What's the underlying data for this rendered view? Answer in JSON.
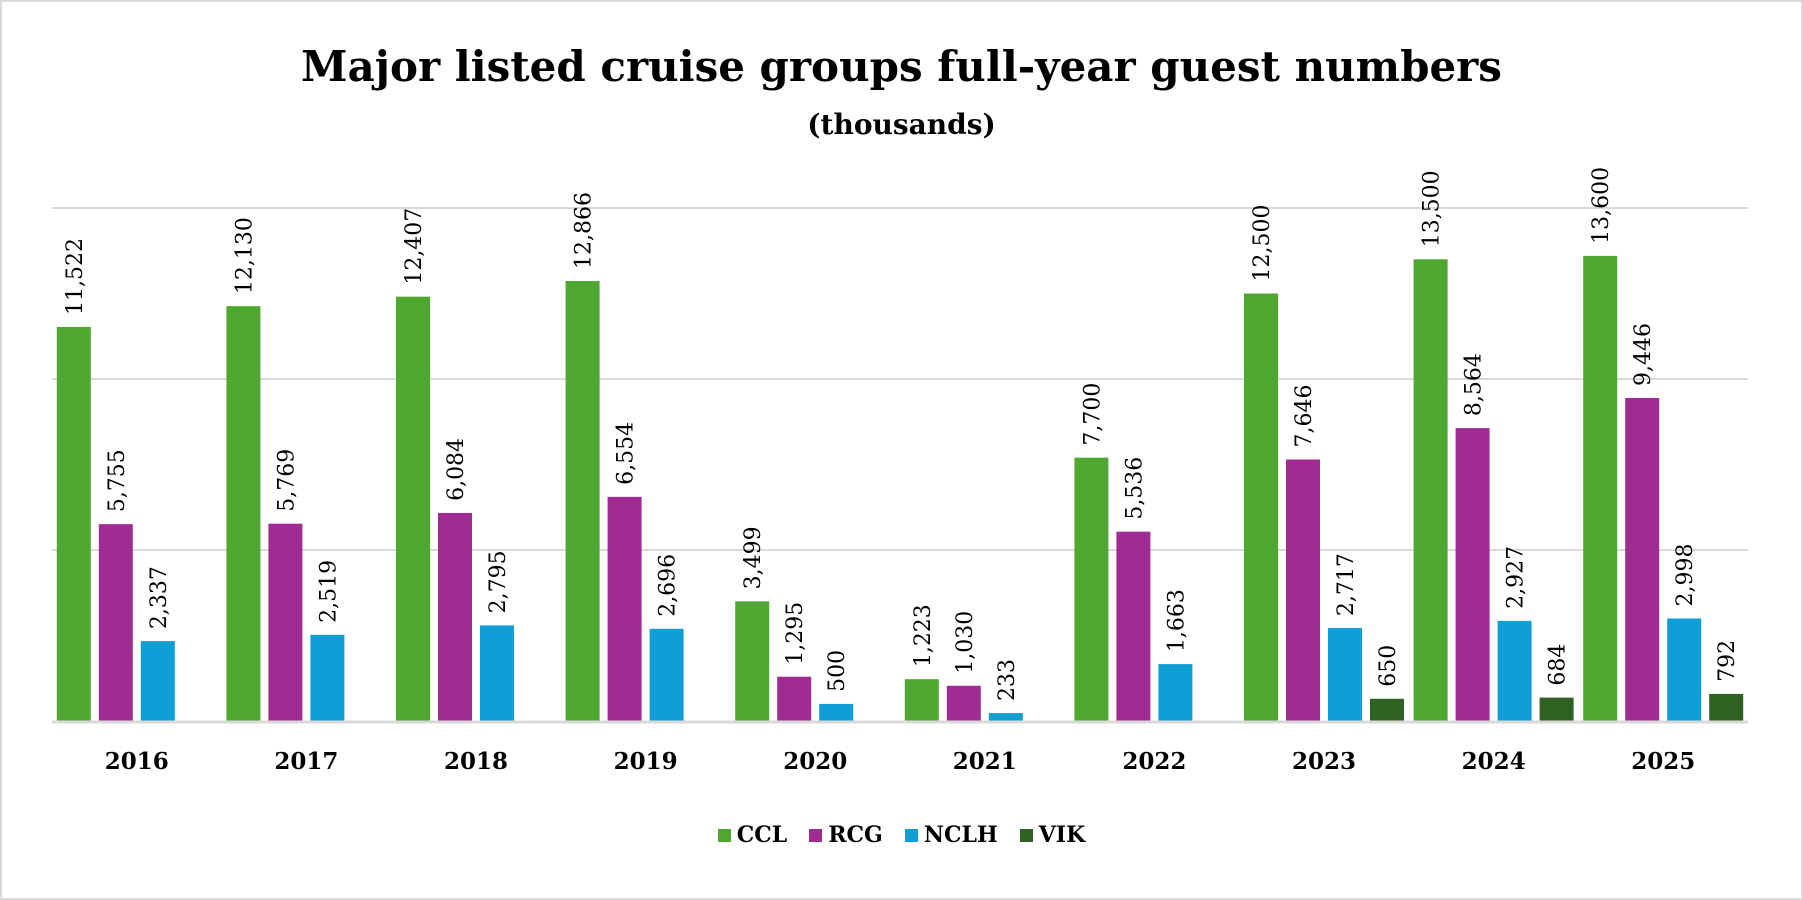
{
  "chart_data": {
    "type": "bar",
    "title": "Major listed cruise groups full-year guest numbers",
    "subtitle": "(thousands)",
    "categories": [
      "2016",
      "2017",
      "2018",
      "2019",
      "2020",
      "2021",
      "2022",
      "2023",
      "2024",
      "2025"
    ],
    "series": [
      {
        "name": "CCL",
        "color": "#4EA72E",
        "values": [
          11522,
          12130,
          12407,
          12866,
          3499,
          1223,
          7700,
          12500,
          13500,
          13600
        ]
      },
      {
        "name": "RCG",
        "color": "#A02B93",
        "values": [
          5755,
          5769,
          6084,
          6554,
          1295,
          1030,
          5536,
          7646,
          8564,
          9446
        ]
      },
      {
        "name": "NCLH",
        "color": "#0F9ED5",
        "values": [
          2337,
          2519,
          2795,
          2696,
          500,
          233,
          1663,
          2717,
          2927,
          2998
        ]
      },
      {
        "name": "VIK",
        "color": "#2E6222",
        "values": [
          null,
          null,
          null,
          null,
          null,
          null,
          null,
          650,
          684,
          792
        ]
      }
    ],
    "ylim": [
      0,
      15000
    ],
    "gridlines": [
      5000,
      10000,
      15000
    ],
    "y_axis_labels_shown": false,
    "legend_position": "bottom",
    "data_labels": "rotated, above bars"
  }
}
